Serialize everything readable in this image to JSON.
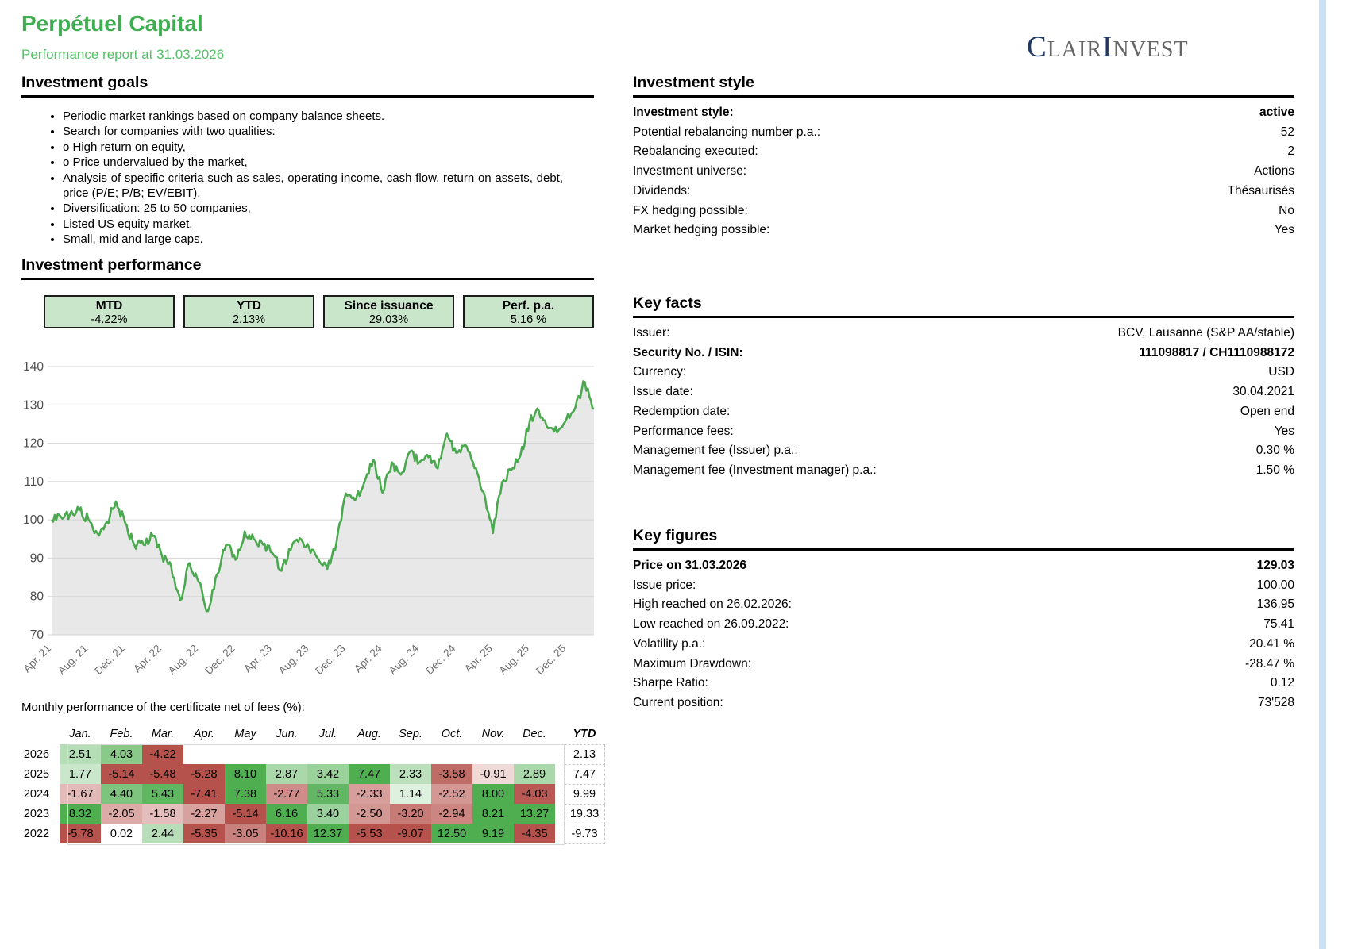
{
  "page": {
    "edge_bar_color": "#cbe1f6"
  },
  "header": {
    "title": "Perpétuel Capital",
    "subtitle": "Performance report at 31.03.2026",
    "logo": {
      "cap1": "C",
      "rest1": "LAIR",
      "cap2": "I",
      "rest2": "NVEST",
      "navy": "#1f3a63",
      "gray": "#666666"
    }
  },
  "investment_goals": {
    "heading": "Investment goals",
    "bullets": [
      "Periodic market rankings based on company balance sheets.",
      "Search for companies with two qualities:",
      "o High return on equity,",
      "o Price undervalued by the market,",
      "Analysis of specific criteria such as sales, operating income, cash flow, return on assets, debt, price (P/E; P/B; EV/EBIT),",
      "Diversification: 25 to 50 companies,",
      "Listed US equity market,",
      "Small, mid and large caps."
    ]
  },
  "investment_style": {
    "heading": "Investment style",
    "rows": [
      {
        "label": "Investment style:",
        "value": "active",
        "bold": true
      },
      {
        "label": "Potential rebalancing number p.a.:",
        "value": "52"
      },
      {
        "label": "Rebalancing executed:",
        "value": "2"
      },
      {
        "label": "Investment universe:",
        "value": "Actions"
      },
      {
        "label": "Dividends:",
        "value": "Thésaurisés"
      },
      {
        "label": "FX hedging possible:",
        "value": "No"
      },
      {
        "label": "Market hedging possible:",
        "value": "Yes"
      }
    ]
  },
  "key_facts": {
    "heading": "Key facts",
    "rows": [
      {
        "label": "Issuer:",
        "value": "BCV, Lausanne (S&P AA/stable)"
      },
      {
        "label": "Security No. / ISIN:",
        "value": "111098817 / CH1110988172",
        "bold": true
      },
      {
        "label": "Currency:",
        "value": "USD"
      },
      {
        "label": "Issue date:",
        "value": "30.04.2021"
      },
      {
        "label": "Redemption date:",
        "value": "Open end"
      },
      {
        "label": "Performance fees:",
        "value": "Yes"
      },
      {
        "label": "Management fee (Issuer) p.a.:",
        "value": "0.30 %"
      },
      {
        "label": "Management fee (Investment manager) p.a.:",
        "value": "1.50 %"
      }
    ]
  },
  "key_figures": {
    "heading": "Key figures",
    "rows": [
      {
        "label": "Price on 31.03.2026",
        "value": "129.03",
        "bold": true
      },
      {
        "label": "Issue price:",
        "value": "100.00"
      },
      {
        "label": "High reached on 26.02.2026:",
        "value": "136.95"
      },
      {
        "label": "Low reached on 26.09.2022:",
        "value": "75.41"
      },
      {
        "label": "Volatility p.a.:",
        "value": "20.41 %"
      },
      {
        "label": "Maximum Drawdown:",
        "value": "-28.47 %"
      },
      {
        "label": "Sharpe Ratio:",
        "value": "0.12"
      },
      {
        "label": "Current position:",
        "value": "73'528"
      }
    ]
  },
  "performance": {
    "heading": "Investment performance",
    "stats": [
      {
        "label": "MTD",
        "value": "-4.22%"
      },
      {
        "label": "YTD",
        "value": "2.13%"
      },
      {
        "label": "Since issuance",
        "value": "29.03%"
      },
      {
        "label": "Perf. p.a.",
        "value": "5.16 %"
      }
    ]
  },
  "chart_data": {
    "type": "area",
    "title": "",
    "xlabel": "",
    "ylabel": "",
    "ylim": [
      70,
      140
    ],
    "y_ticks": [
      70,
      80,
      90,
      100,
      110,
      120,
      130,
      140
    ],
    "grid": true,
    "line_color": "#4aa94e",
    "area_color": "#e8e8e8",
    "x_labels": [
      "Apr. 21",
      "Aug. 21",
      "Dec. 21",
      "Apr. 22",
      "Aug. 22",
      "Dec. 22",
      "Apr. 23",
      "Aug. 23",
      "Dec. 23",
      "Apr. 24",
      "Aug. 24",
      "Dec. 24",
      "Apr. 25",
      "Aug. 25",
      "Dec. 25"
    ],
    "x_label_month_step": 4,
    "months": [
      "2021-04",
      "2026-03"
    ],
    "values": [
      100,
      100.8,
      101.5,
      102.5,
      100.2,
      96.4,
      99.5,
      104.8,
      99.2,
      93.5,
      93.5,
      95.8,
      90.7,
      87.9,
      79.0,
      88.7,
      83.8,
      76.2,
      85.8,
      93.6,
      89.6,
      97.0,
      95.0,
      93.5,
      91.4,
      86.7,
      92.0,
      95.2,
      92.8,
      89.8,
      87.2,
      94.3,
      106.9,
      105.1,
      109.7,
      115.7,
      107.1,
      115.0,
      111.8,
      117.8,
      115.0,
      116.3,
      113.4,
      122.5,
      117.5,
      119.6,
      113.5,
      107.2,
      96.5,
      109.8,
      113.0,
      116.8,
      125.6,
      128.5,
      123.9,
      122.8,
      126.3,
      129.5,
      136.0,
      129.0
    ]
  },
  "monthly_table": {
    "caption": "Monthly performance of the certificate net of fees (%):",
    "columns": [
      "Jan.",
      "Feb.",
      "Mar.",
      "Apr.",
      "May",
      "Jun.",
      "Jul.",
      "Aug.",
      "Sep.",
      "Oct.",
      "Nov.",
      "Dec."
    ],
    "ytd_label": "YTD",
    "rows": [
      {
        "year": "2026",
        "values": [
          2.51,
          4.03,
          -4.22,
          null,
          null,
          null,
          null,
          null,
          null,
          null,
          null,
          null
        ],
        "ytd": "2.13"
      },
      {
        "year": "2025",
        "values": [
          1.77,
          -5.14,
          -5.48,
          -5.28,
          8.1,
          2.87,
          3.42,
          7.47,
          2.33,
          -3.58,
          -0.91,
          2.89
        ],
        "ytd": "7.47"
      },
      {
        "year": "2024",
        "values": [
          -1.67,
          4.4,
          5.43,
          -7.41,
          7.38,
          -2.77,
          5.33,
          -2.33,
          1.14,
          -2.52,
          8.0,
          -4.03
        ],
        "ytd": "9.99"
      },
      {
        "year": "2023",
        "values": [
          8.32,
          -2.05,
          -1.58,
          -2.27,
          -5.14,
          6.16,
          3.4,
          -2.5,
          -3.2,
          -2.94,
          8.21,
          13.27
        ],
        "ytd": "19.33"
      },
      {
        "year": "2022",
        "values": [
          -5.78,
          0.02,
          2.44,
          -5.35,
          -3.05,
          -10.16,
          12.37,
          -5.53,
          -9.07,
          12.5,
          9.19,
          -4.35
        ],
        "ytd": "-9.73"
      }
    ],
    "color_scale": {
      "positive": "#4fae50",
      "negative": "#b5524c",
      "positive_cap": 6.0,
      "negative_cap": 4.2
    }
  }
}
